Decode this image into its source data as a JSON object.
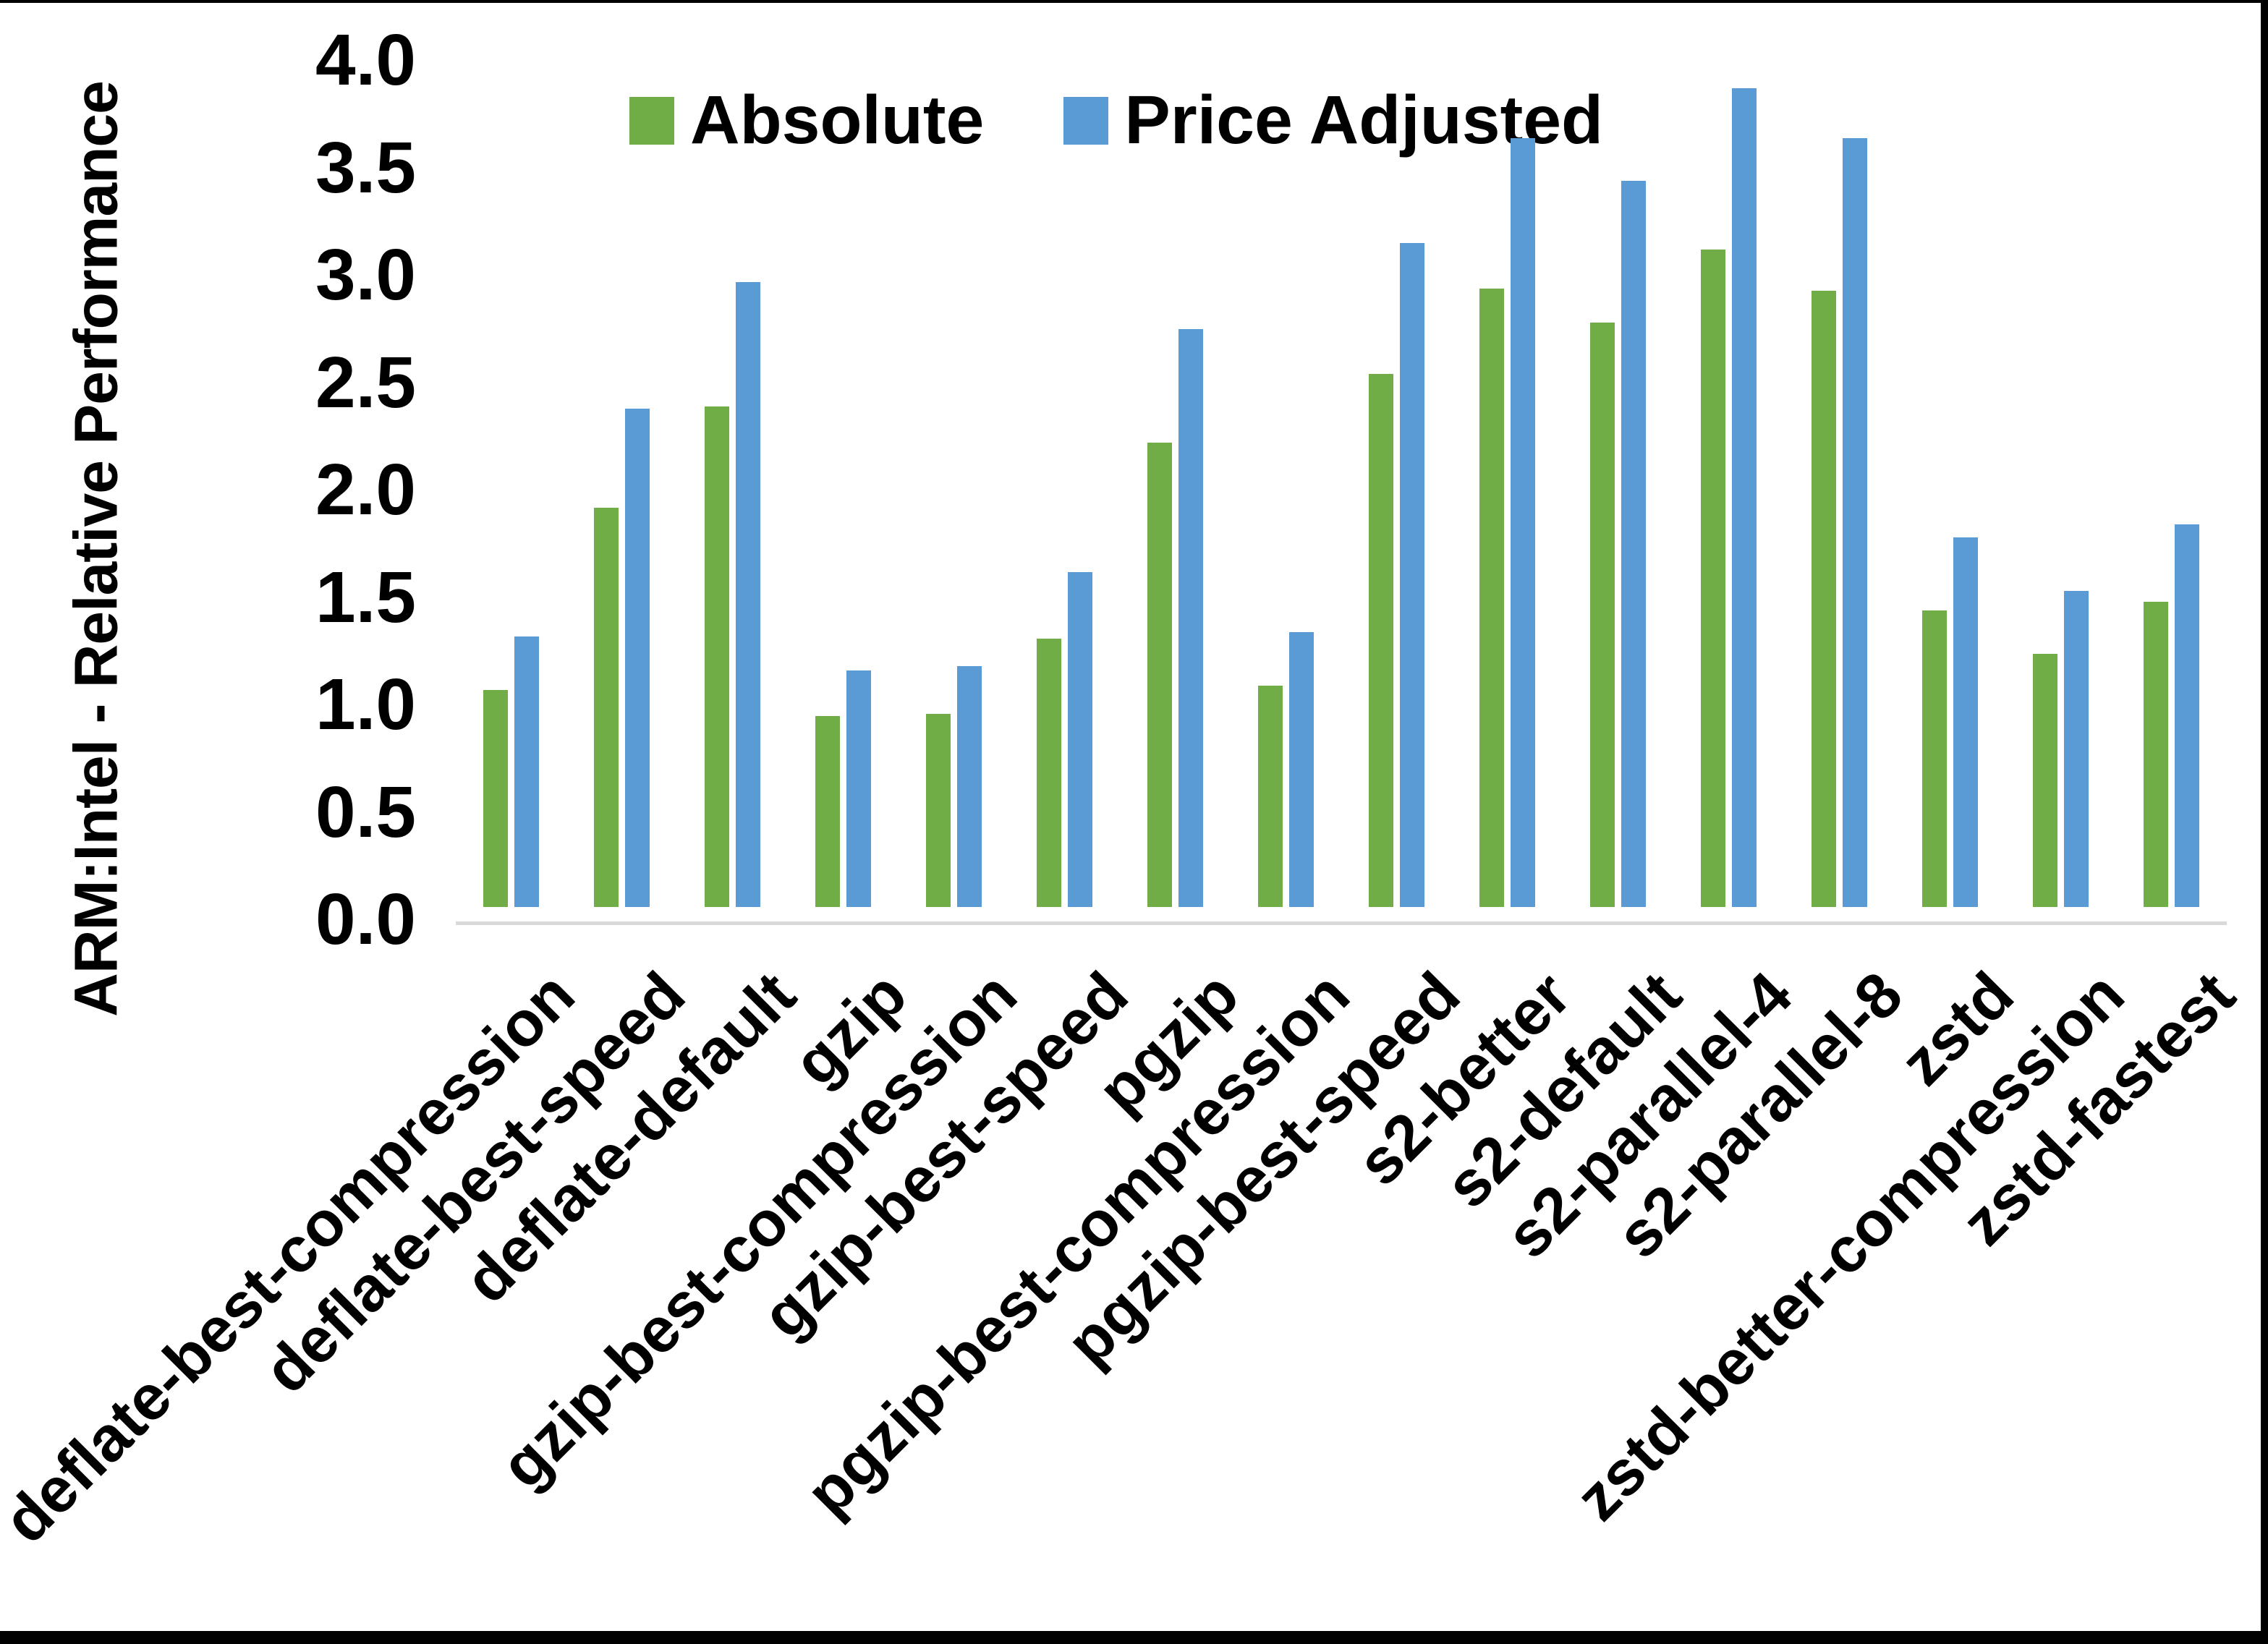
{
  "figure": {
    "background": "#FFFFFF",
    "border_color": "#000000",
    "axis_line_color": "#D9D9D9",
    "text_color": "#000000"
  },
  "chart_data": {
    "type": "bar",
    "title": "",
    "xlabel": "",
    "ylabel": "ARM:Intel - Relative Performance",
    "ylim": [
      0.0,
      4.0
    ],
    "ytick_step": 0.5,
    "yticks": [
      "4.0",
      "3.5",
      "3.0",
      "2.5",
      "2.0",
      "1.5",
      "1.0",
      "0.5",
      "0.0"
    ],
    "grid": false,
    "legend_position": "top-center",
    "categories": [
      "deflate-best-compression",
      "deflate-best-speed",
      "deflate-default",
      "gzip",
      "gzip-best-compression",
      "gzip-best-speed",
      "pgzip",
      "pgzip-best-compression",
      "pgzip-best-speed",
      "s2-better",
      "s2-default",
      "s2-parallel-4",
      "s2-parallel-8",
      "zstd",
      "zstd-better-compression",
      "zstd-fastest"
    ],
    "series": [
      {
        "name": "Absolute",
        "color": "#70AD47",
        "values": [
          1.01,
          1.86,
          2.33,
          0.89,
          0.9,
          1.25,
          2.16,
          1.03,
          2.48,
          2.88,
          2.72,
          3.06,
          2.87,
          1.38,
          1.18,
          1.42
        ]
      },
      {
        "name": "Price Adjusted",
        "color": "#5B9BD5",
        "values": [
          1.26,
          2.32,
          2.91,
          1.1,
          1.12,
          1.56,
          2.69,
          1.28,
          3.09,
          3.58,
          3.38,
          3.81,
          3.58,
          1.72,
          1.47,
          1.78
        ]
      }
    ]
  }
}
